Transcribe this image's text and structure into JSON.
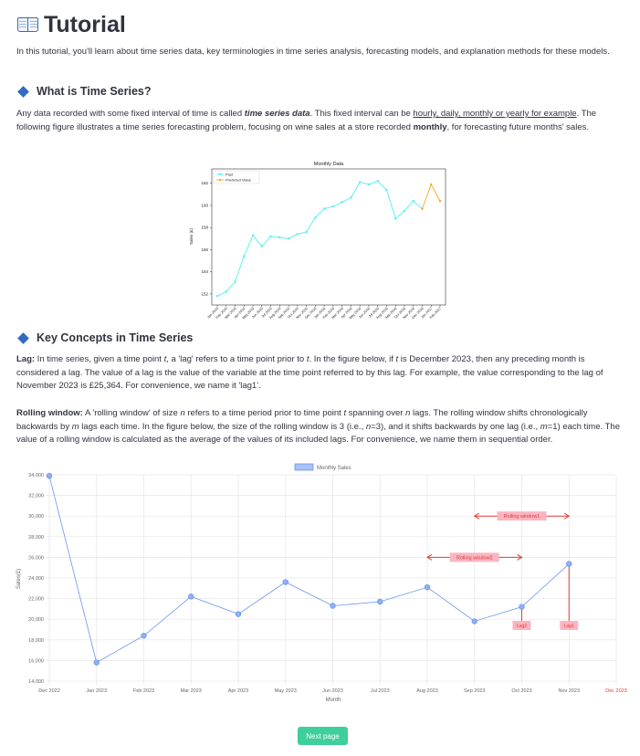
{
  "page": {
    "title": "Tutorial",
    "intro": "In this tutorial, you'll learn about time series data, key terminologies in time series analysis, forecasting models, and explanation methods for these models.",
    "section1": {
      "heading": "What is Time Series?",
      "p_a": "Any data recorded with some fixed interval of time is called ",
      "p_b": "time series data",
      "p_c": ". This fixed interval can be ",
      "p_link": "hourly, daily, monthly or yearly for example",
      "p_d": ". The following figure illustrates a time series forecasting problem, focusing on wine sales at a store recorded ",
      "p_e": "monthly",
      "p_f": ", for forecasting future months' sales."
    },
    "section2": {
      "heading": "Key Concepts in Time Series",
      "lag_label": "Lag:",
      "lag_a": " In time series, given a time point ",
      "lag_t1": "t",
      "lag_b": ", a 'lag' refers to a time point prior to ",
      "lag_t2": "t",
      "lag_c": ". In the figure below, if ",
      "lag_t3": "t",
      "lag_d": " is December 2023, then any preceding month is considered a lag. The value of a lag is the value of the variable at the time point referred to by this lag. For example, the value corresponding to the lag of November 2023 is £25,364. For convenience, we name it 'lag1'.",
      "rw_label": "Rolling window:",
      "rw_a": " A 'rolling window' of size ",
      "rw_n1": "n",
      "rw_b": " refers to a time period prior to time point ",
      "rw_t": "t",
      "rw_c": " spanning over ",
      "rw_n2": "n",
      "rw_d": " lags. The rolling window shifts chronologically backwards by ",
      "rw_m1": "m",
      "rw_e": " lags each time. In the figure below, the size of the rolling window is 3 (i.e., ",
      "rw_n3": "n",
      "rw_f": "=3), and it shifts backwards by one lag (i.e., ",
      "rw_m2": "m",
      "rw_g": "=1) each time. The value of a rolling window is calculated as the average of the values of its included lags. For convenience, we name them in sequential order."
    },
    "next_button": "Next page"
  },
  "chart_data": [
    {
      "type": "line",
      "title": "Monthly Data",
      "ylabel": "Sales (£)",
      "xlabel": "",
      "legend_position": "top-left",
      "grid": false,
      "ylim": [
        151,
        163.3
      ],
      "yticks": [
        152,
        154,
        156,
        158,
        160,
        162
      ],
      "categories": [
        "Jan 2015",
        "Feb 2015",
        "Mar 2015",
        "Apr 2015",
        "May 2015",
        "Jun 2015",
        "Jul 2015",
        "Aug 2015",
        "Sep 2015",
        "Oct 2015",
        "Nov 2015",
        "Dec 2015",
        "Jan 2016",
        "Feb 2016",
        "Mar 2016",
        "Apr 2016",
        "May 2016",
        "Jun 2016",
        "Jul 2016",
        "Aug 2016",
        "Sep 2016",
        "Oct 2016",
        "Nov 2016",
        "Dec 2016",
        "Jan 2017",
        "Feb 2017"
      ],
      "series": [
        {
          "name": "Past",
          "color": "#4ff0f0",
          "values": [
            151.8,
            152.2,
            153.1,
            155.4,
            157.3,
            156.3,
            157.2,
            157.1,
            157.0,
            157.4,
            157.6,
            158.9,
            159.7,
            159.9,
            160.3,
            160.7,
            162.1,
            161.9,
            162.2,
            161.4,
            158.8,
            159.5,
            160.4,
            159.7,
            null,
            null
          ]
        },
        {
          "name": "Predicted Value",
          "color": "#f5a623",
          "values": [
            null,
            null,
            null,
            null,
            null,
            null,
            null,
            null,
            null,
            null,
            null,
            null,
            null,
            null,
            null,
            null,
            null,
            null,
            null,
            null,
            null,
            null,
            null,
            159.7,
            161.9,
            160.4
          ]
        }
      ]
    },
    {
      "type": "line",
      "title": "",
      "xlabel": "Month",
      "ylabel": "Sales(£)",
      "grid": true,
      "legend_position": "top",
      "ylim": [
        14000,
        34000
      ],
      "yticks": [
        "14,000",
        "16,000",
        "18,000",
        "20,000",
        "22,000",
        "24,000",
        "26,000",
        "28,000",
        "30,000",
        "32,000",
        "34,000"
      ],
      "categories": [
        "Dec 2022",
        "Jan 2023",
        "Feb 2023",
        "Mar 2023",
        "Apr 2023",
        "May 2023",
        "Jun 2023",
        "Jul 2023",
        "Aug 2023",
        "Sep 2023",
        "Oct 2023",
        "Nov 2023",
        "Dec 2023"
      ],
      "highlight_category": "Dec 2023",
      "highlight_color": "#e53935",
      "series": [
        {
          "name": "Monthly Sales",
          "color": "#6d95f0",
          "values": [
            33900,
            15800,
            18400,
            22200,
            20500,
            23600,
            21300,
            21700,
            23100,
            19800,
            21200,
            25364,
            null
          ]
        }
      ],
      "annotations": [
        {
          "label": "Rolling window1",
          "from": "Sep 2023",
          "to": "Nov 2023",
          "y": 30000
        },
        {
          "label": "Rolling window2",
          "from": "Aug 2023",
          "to": "Oct 2023",
          "y": 26000
        },
        {
          "label": "Lag2",
          "at": "Oct 2023",
          "y": 19400
        },
        {
          "label": "Lag1",
          "at": "Nov 2023",
          "y": 19400
        }
      ],
      "annotation_color": "#e53935",
      "annotation_fill": "#f7b6c2"
    }
  ]
}
